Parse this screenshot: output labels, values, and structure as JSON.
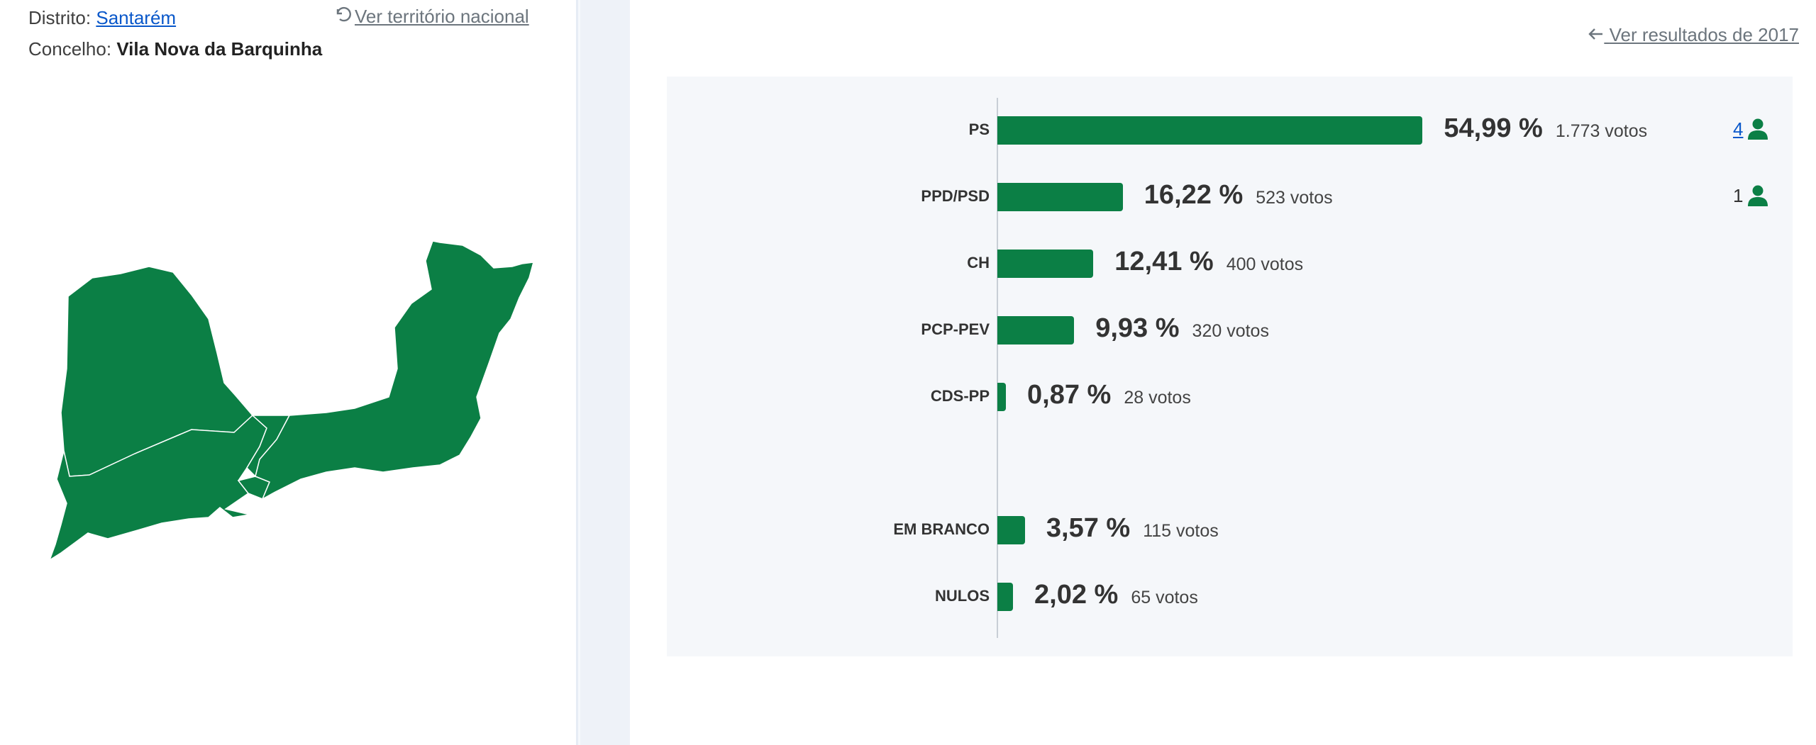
{
  "location": {
    "district_label": "Distrito:",
    "district_value": "Santarém",
    "council_label": "Concelho:",
    "council_value": "Vila Nova da Barquinha",
    "national_link": "Ver território nacional"
  },
  "results_link": "Ver resultados de 2017",
  "colors": {
    "bar": "#0b7f45",
    "map": "#0b7f45",
    "link": "#0a58ca"
  },
  "chart_data": {
    "type": "bar",
    "orientation": "horizontal",
    "categories": [
      "PS",
      "PPD/PSD",
      "CH",
      "PCP-PEV",
      "CDS-PP",
      "EM BRANCO",
      "NULOS"
    ],
    "values": [
      54.99,
      16.22,
      12.41,
      9.93,
      0.87,
      3.57,
      2.02
    ],
    "percent_labels": [
      "54,99 %",
      "16,22 %",
      "12,41 %",
      "9,93 %",
      "0,87 %",
      "3,57 %",
      "2,02 %"
    ],
    "votes_labels": [
      "1.773 votos",
      "523 votos",
      "400 votos",
      "320 votos",
      "28 votos",
      "115 votos",
      "65 votos"
    ],
    "seats": [
      "4",
      "1",
      "",
      "",
      "",
      "",
      ""
    ],
    "xlim": [
      0,
      100
    ]
  }
}
